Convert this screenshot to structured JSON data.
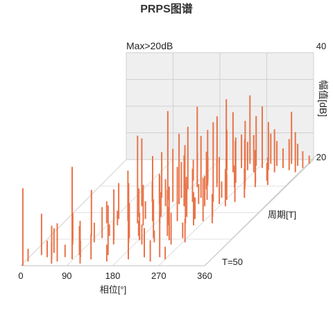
{
  "chart_data": {
    "type": "bar",
    "chart_subtype": "3d-prps",
    "title": "PRPS图谱",
    "note": "Max>20dB",
    "x_axis": {
      "label": "相位[°]",
      "ticks": [
        0,
        90,
        180,
        270,
        360
      ],
      "range": [
        0,
        360
      ]
    },
    "depth_axis": {
      "label": "周期[T]",
      "end_label": "T=50",
      "range": [
        0,
        50
      ]
    },
    "y_axis": {
      "label": "幅值[dB]",
      "ticks": [
        20,
        40
      ],
      "range": [
        0,
        40
      ]
    },
    "bar_color": "#e8744a",
    "wall_color": "#efefef",
    "pulses": [
      [
        4,
        50,
        18
      ],
      [
        6,
        48,
        3
      ],
      [
        20,
        45,
        10
      ],
      [
        35,
        46,
        4
      ],
      [
        40,
        44,
        6
      ],
      [
        48,
        47,
        8
      ],
      [
        56,
        49,
        5
      ],
      [
        63,
        48,
        9
      ],
      [
        70,
        46,
        3
      ],
      [
        88,
        47,
        22
      ],
      [
        94,
        45,
        7
      ],
      [
        100,
        46,
        4
      ],
      [
        112,
        49,
        10
      ],
      [
        125,
        47,
        6
      ],
      [
        150,
        45,
        12
      ],
      [
        160,
        48,
        4
      ],
      [
        198,
        47,
        9
      ],
      [
        225,
        46,
        7
      ],
      [
        245,
        48,
        5
      ],
      [
        255,
        46,
        11
      ],
      [
        270,
        47,
        3
      ],
      [
        52,
        38,
        7
      ],
      [
        60,
        40,
        3
      ],
      [
        80,
        36,
        12
      ],
      [
        98,
        39,
        5
      ],
      [
        105,
        37,
        8
      ],
      [
        115,
        36,
        3
      ],
      [
        132,
        38,
        13
      ],
      [
        140,
        40,
        6
      ],
      [
        158,
        37,
        9
      ],
      [
        165,
        39,
        15
      ],
      [
        172,
        36,
        4
      ],
      [
        182,
        38,
        7
      ],
      [
        195,
        40,
        5
      ],
      [
        205,
        37,
        10
      ],
      [
        215,
        39,
        3
      ],
      [
        228,
        36,
        12
      ],
      [
        240,
        38,
        6
      ],
      [
        252,
        40,
        8
      ],
      [
        262,
        37,
        4
      ],
      [
        275,
        39,
        6
      ],
      [
        85,
        30,
        6
      ],
      [
        100,
        28,
        10
      ],
      [
        110,
        31,
        4
      ],
      [
        122,
        29,
        14
      ],
      [
        135,
        27,
        8
      ],
      [
        145,
        30,
        24
      ],
      [
        152,
        28,
        5
      ],
      [
        160,
        31,
        11
      ],
      [
        170,
        29,
        18
      ],
      [
        178,
        27,
        7
      ],
      [
        188,
        30,
        13
      ],
      [
        198,
        28,
        9
      ],
      [
        208,
        31,
        5
      ],
      [
        218,
        29,
        15
      ],
      [
        228,
        27,
        8
      ],
      [
        238,
        30,
        11
      ],
      [
        248,
        28,
        6
      ],
      [
        258,
        31,
        9
      ],
      [
        268,
        29,
        12
      ],
      [
        278,
        27,
        4
      ],
      [
        290,
        30,
        8
      ],
      [
        120,
        22,
        20
      ],
      [
        132,
        20,
        6
      ],
      [
        142,
        18,
        14
      ],
      [
        150,
        21,
        9
      ],
      [
        158,
        19,
        27
      ],
      [
        166,
        22,
        8
      ],
      [
        172,
        20,
        16
      ],
      [
        180,
        18,
        11
      ],
      [
        188,
        21,
        21
      ],
      [
        194,
        19,
        7
      ],
      [
        202,
        22,
        15
      ],
      [
        210,
        20,
        10
      ],
      [
        218,
        18,
        19
      ],
      [
        226,
        21,
        6
      ],
      [
        234,
        19,
        13
      ],
      [
        242,
        22,
        9
      ],
      [
        250,
        20,
        24
      ],
      [
        258,
        18,
        5
      ],
      [
        266,
        21,
        14
      ],
      [
        272,
        19,
        8
      ],
      [
        282,
        22,
        11
      ],
      [
        292,
        20,
        6
      ],
      [
        302,
        18,
        9
      ],
      [
        162,
        12,
        13
      ],
      [
        170,
        10,
        7
      ],
      [
        176,
        14,
        20
      ],
      [
        182,
        11,
        10
      ],
      [
        190,
        13,
        26
      ],
      [
        198,
        10,
        8
      ],
      [
        206,
        12,
        18
      ],
      [
        212,
        14,
        12
      ],
      [
        220,
        11,
        22
      ],
      [
        228,
        13,
        9
      ],
      [
        234,
        10,
        17
      ],
      [
        242,
        12,
        28
      ],
      [
        250,
        14,
        10
      ],
      [
        256,
        11,
        15
      ],
      [
        262,
        13,
        7
      ],
      [
        270,
        10,
        20
      ],
      [
        278,
        12,
        11
      ],
      [
        286,
        14,
        16
      ],
      [
        294,
        11,
        8
      ],
      [
        302,
        13,
        12
      ],
      [
        312,
        10,
        6
      ],
      [
        322,
        12,
        9
      ],
      [
        214,
        5,
        14
      ],
      [
        222,
        3,
        9
      ],
      [
        230,
        6,
        21
      ],
      [
        238,
        4,
        12
      ],
      [
        246,
        2,
        25
      ],
      [
        254,
        5,
        10
      ],
      [
        262,
        3,
        18
      ],
      [
        270,
        6,
        13
      ],
      [
        278,
        4,
        22
      ],
      [
        286,
        2,
        11
      ],
      [
        294,
        5,
        17
      ],
      [
        302,
        3,
        9
      ],
      [
        310,
        6,
        15
      ],
      [
        318,
        4,
        7
      ],
      [
        326,
        2,
        19
      ],
      [
        334,
        5,
        11
      ],
      [
        342,
        3,
        8
      ],
      [
        350,
        6,
        14
      ],
      [
        356,
        4,
        6
      ],
      [
        360,
        2,
        3
      ]
    ]
  }
}
